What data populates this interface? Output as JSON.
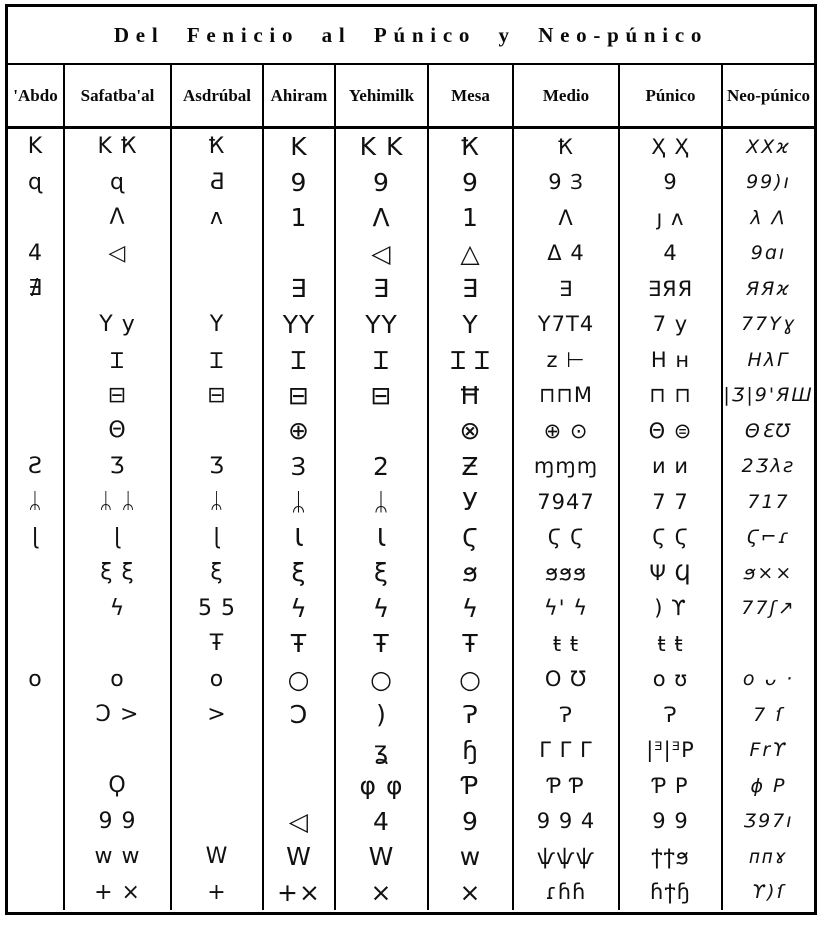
{
  "title": "Del Fenicio al Púnico y Neo-púnico",
  "table": {
    "columns": [
      "'Abdo",
      "Safatba'al",
      "Asdrúbal",
      "Ahiram",
      "Yehimilk",
      "Mesa",
      "Medio",
      "Púnico",
      "Neo-púnico"
    ],
    "rows": [
      [
        "K",
        "K Ҟ",
        "Ҟ",
        "K",
        "K K",
        "Ҟ",
        "Ҟ",
        "Ҳ Ҳ",
        "XXϰ"
      ],
      [
        "ɋ",
        "ɋ",
        "Ƌ",
        "9",
        "9",
        "9",
        "9 Ɜ",
        "9",
        "99)ı"
      ],
      [
        "",
        "Λ",
        "ʌ",
        "1",
        "Λ",
        "1",
        "Λ",
        "ȷ ʌ",
        "λ Λ"
      ],
      [
        "4",
        "◁",
        "",
        "",
        "◁",
        "△",
        "Δ 4",
        "4",
        "9ɑı"
      ],
      [
        "∄",
        "",
        "",
        "∃",
        "∃",
        "∃",
        "∃",
        "∃ЯЯ",
        "ЯЯϰ"
      ],
      [
        "",
        "Y y",
        "Y",
        "YY",
        "YY",
        "Y",
        "Y7T4",
        "7 y",
        "77Yɣ"
      ],
      [
        "",
        "Ɪ",
        "Ɪ",
        "Ɪ",
        "Ɪ",
        "Ɪ Ɪ",
        "z ⊢",
        "H ʜ",
        "HλΓ"
      ],
      [
        "",
        "⊟",
        "⊟",
        "⊟",
        "⊟",
        "Ħ",
        "⊓⊓M",
        "⊓ ⊓",
        "|Ӡ|9'ЯШ"
      ],
      [
        "",
        "Θ",
        "",
        "⊕",
        "",
        "⊗",
        "⊕ ⊙",
        "Θ ⊜",
        "ΘƐƱ"
      ],
      [
        "Ƨ",
        "Ӡ",
        "Ӡ",
        "Ɜ",
        "2",
        "Ƶ",
        "ɱɱɱ",
        "ᴎ ᴎ",
        "2Ӡλƨ"
      ],
      [
        "ᛦ",
        "ᛦ ᛦ",
        "ᛦ",
        "ᛦ",
        "ᛦ",
        "У",
        "7947",
        "7 7",
        "717"
      ],
      [
        "ɭ",
        "ɭ",
        "ɭ",
        "Ɩ",
        "Ɩ",
        "Ϛ",
        "Ϛ Ϛ",
        "Ϛ Ϛ",
        "Ϛ⌐ɾ"
      ],
      [
        "",
        "ξ ξ",
        "ξ",
        "ξ",
        "ξ",
        "ϧ",
        "ϧϧϧ",
        "Ψ Ϥ",
        "ϧ××"
      ],
      [
        "",
        "ϟ",
        "5 5",
        "ϟ",
        "ϟ",
        "ϟ",
        "ϟ' ϟ",
        ") ϒ",
        "77ʃ↗"
      ],
      [
        "",
        "",
        "Ŧ",
        "Ŧ",
        "Ŧ",
        "Ŧ",
        "ŧ ŧ",
        "ŧ ŧ",
        ""
      ],
      [
        "o",
        "o",
        "o",
        "○",
        "○",
        "○",
        "O Ʊ",
        "o ʊ",
        "o ᴗ ·"
      ],
      [
        "",
        "Ɔ >",
        ">",
        "Ɔ",
        ")",
        "Ɂ",
        "Ɂ",
        "Ɂ",
        "7 ſ"
      ],
      [
        "",
        "",
        "",
        "",
        "ʓ",
        "ɧ",
        "Γ Γ Γ",
        "|ᴲ|ᴲP",
        "Frϒ"
      ],
      [
        "",
        "Ϙ",
        "",
        "",
        "φ φ",
        "Ƥ",
        "Ƥ Ƥ",
        "Ƥ P",
        "ϕ P"
      ],
      [
        "",
        "9 9",
        "",
        "◁",
        "4",
        "9",
        "9 9 4",
        "9 9",
        "Ӡ97ı"
      ],
      [
        "",
        "w w",
        "W",
        "W",
        "W",
        "w",
        "ѱѱѱ",
        "ϯϯϧ",
        "ᴨᴨɤ"
      ],
      [
        "",
        "+ ×",
        "+",
        "+×",
        "×",
        "×",
        "ɾɦɦ",
        "ɦϯɧ",
        "ϒ)ſ"
      ]
    ]
  },
  "colors": {
    "paper": "#ffffff",
    "ink": "#000000"
  }
}
